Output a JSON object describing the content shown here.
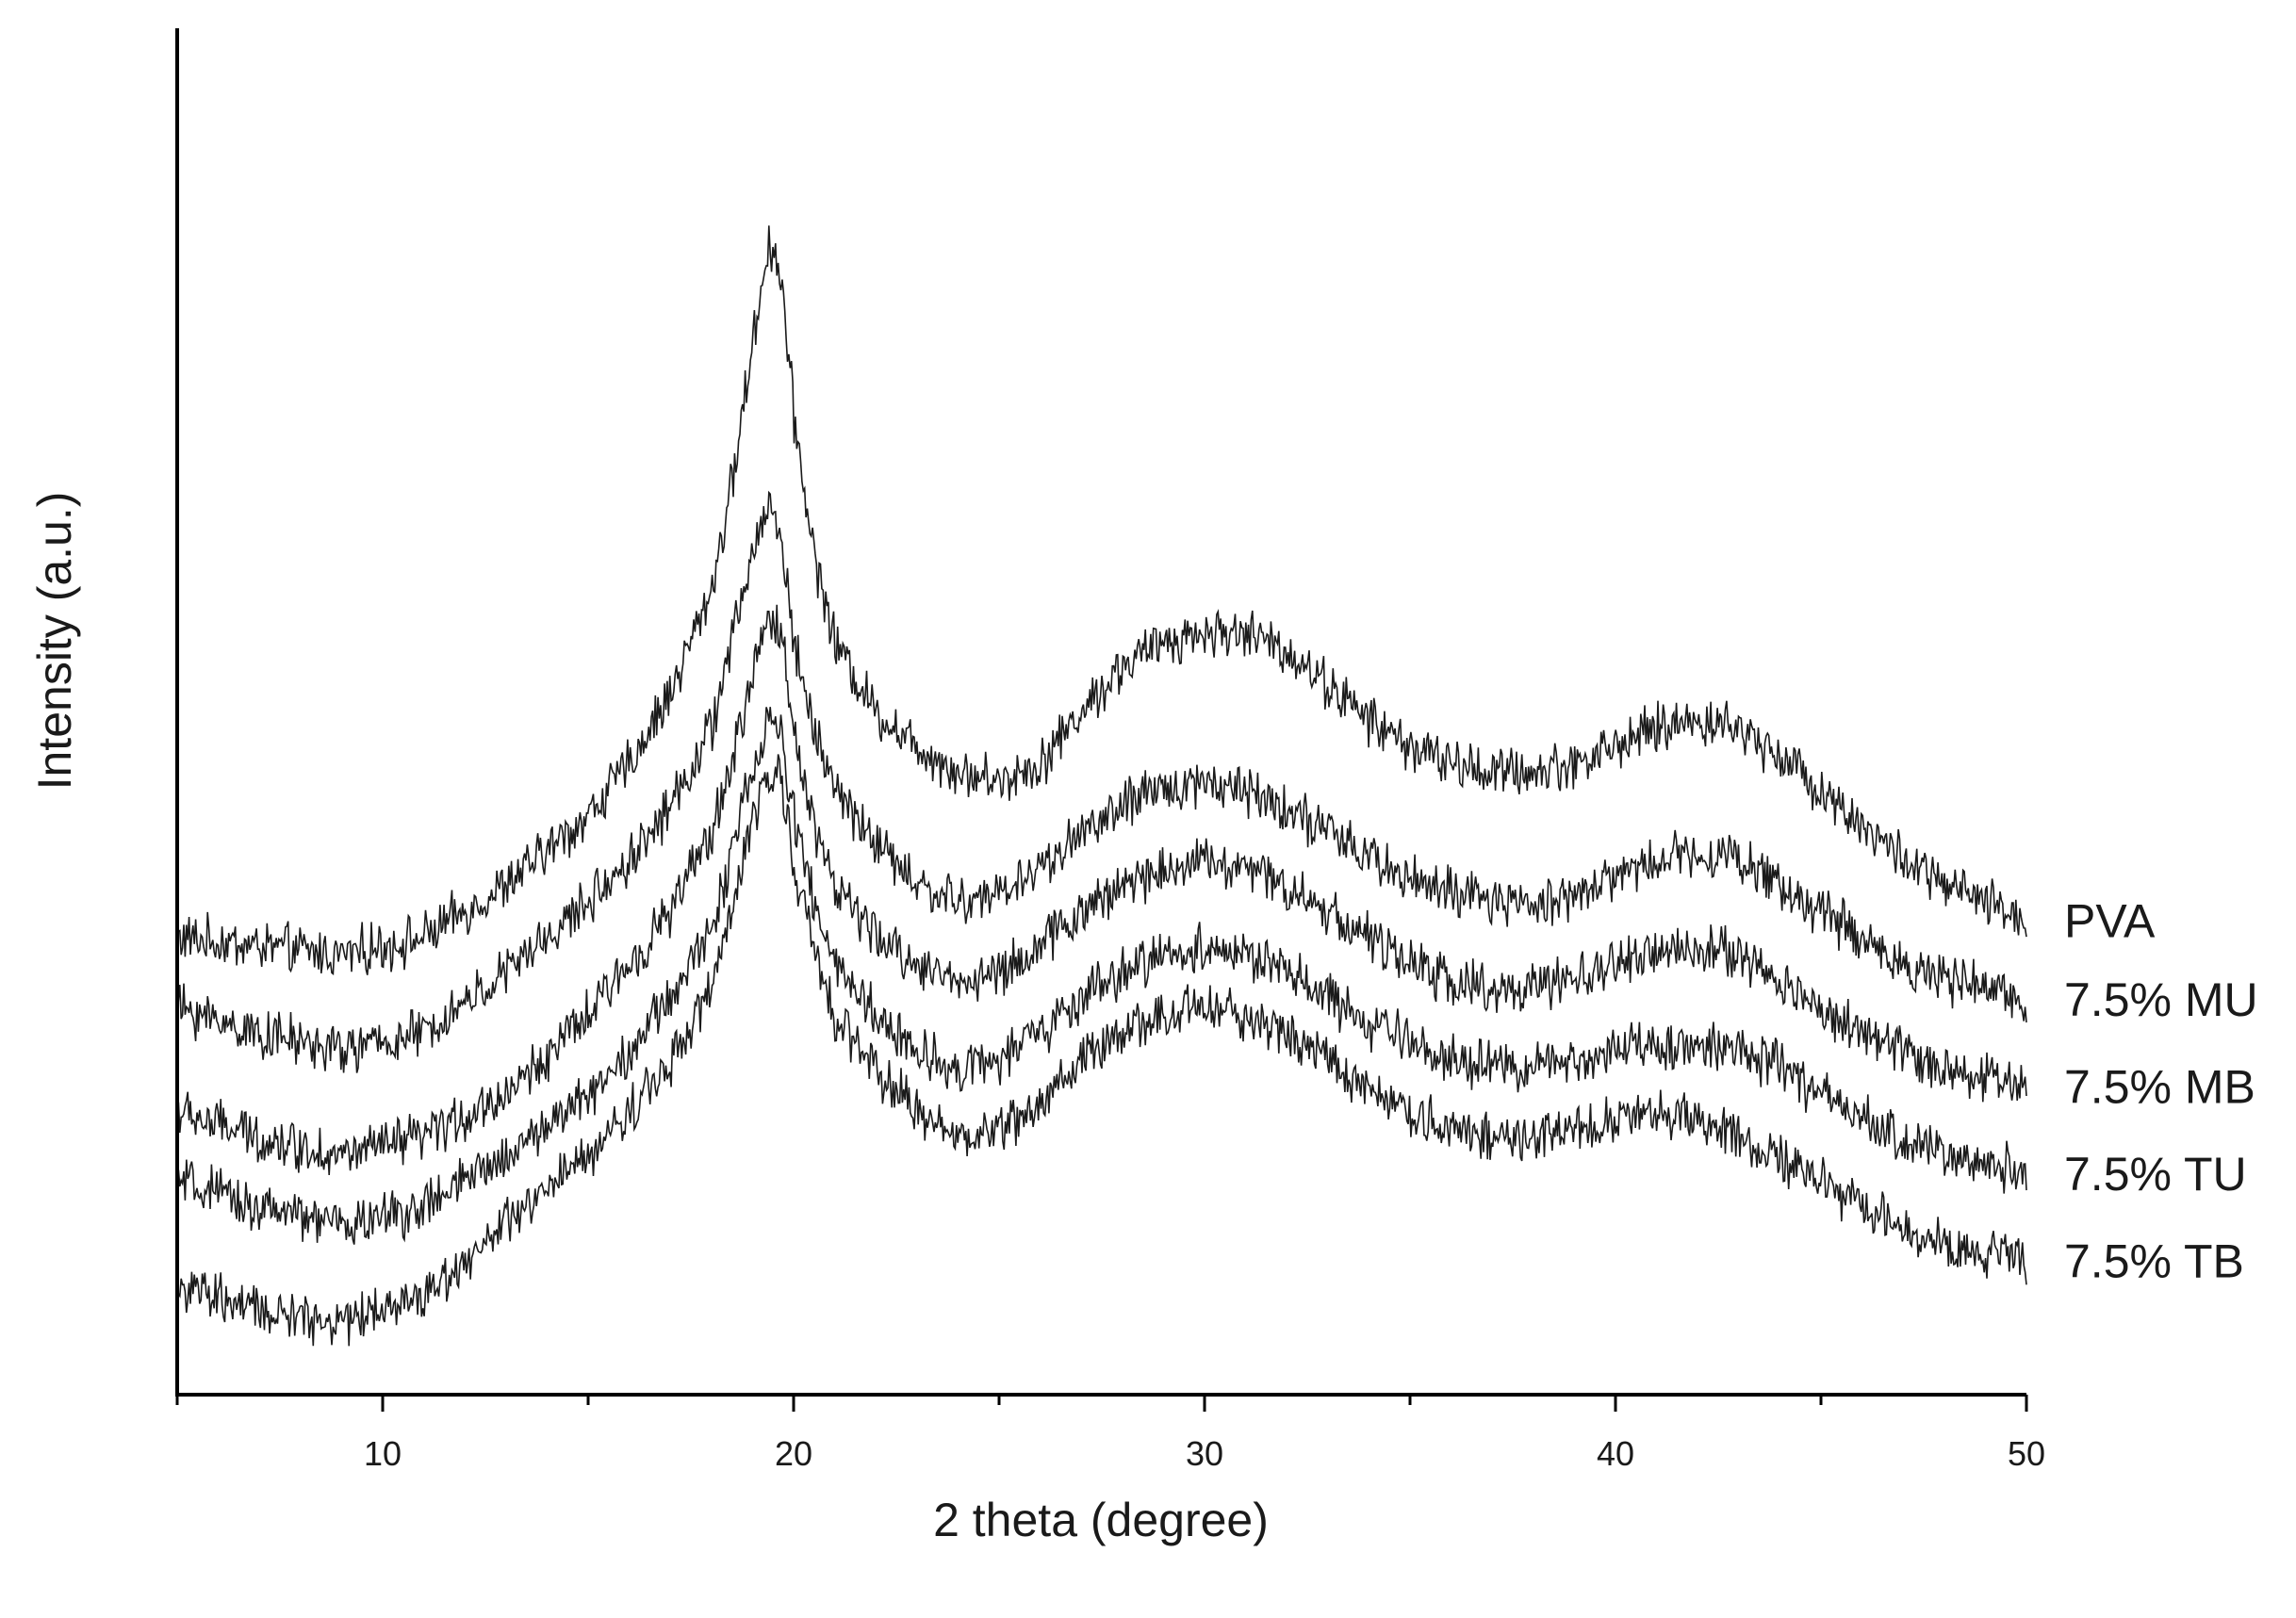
{
  "chart_data": {
    "type": "line",
    "title": "",
    "xlabel": "2 theta (degree)",
    "ylabel": "Intensity (a.u.)",
    "xlim": [
      5,
      50
    ],
    "x_ticks": [
      10,
      20,
      30,
      40,
      50
    ],
    "x_minor_ticks": [
      5,
      15,
      25,
      35,
      45
    ],
    "y_ticks_shown": false,
    "grid": false,
    "legend": "labels at right end of each curve",
    "line_color": "#1a1a1a",
    "series": [
      {
        "name": "PVA",
        "x": [
          5,
          7,
          9,
          11,
          13,
          15,
          16,
          17,
          18,
          18.5,
          19,
          19.4,
          19.7,
          20,
          20.5,
          21,
          22,
          23,
          24,
          25,
          26,
          27,
          28,
          29,
          30,
          31,
          32,
          33,
          34,
          35,
          36,
          37,
          38,
          39,
          40,
          41,
          42,
          43,
          44,
          45,
          46,
          47,
          48,
          49,
          50
        ],
        "y": [
          2.0,
          1.95,
          1.9,
          2.0,
          2.3,
          2.7,
          3.0,
          3.4,
          4.0,
          4.6,
          5.4,
          6.0,
          5.8,
          5.0,
          4.2,
          3.7,
          3.3,
          3.1,
          2.95,
          2.9,
          3.0,
          3.3,
          3.55,
          3.7,
          3.75,
          3.75,
          3.65,
          3.45,
          3.25,
          3.1,
          3.0,
          2.95,
          2.95,
          3.0,
          3.1,
          3.2,
          3.25,
          3.2,
          3.05,
          2.85,
          2.65,
          2.45,
          2.3,
          2.2,
          2.1
        ]
      },
      {
        "name": "7.5% MU",
        "x": [
          5,
          7,
          9,
          11,
          13,
          15,
          16,
          17,
          18,
          18.5,
          19,
          19.4,
          19.7,
          20,
          20.5,
          21,
          22,
          23,
          24,
          25,
          26,
          27,
          28,
          29,
          30,
          31,
          32,
          33,
          34,
          35,
          36,
          37,
          38,
          39,
          40,
          41,
          42,
          43,
          44,
          45,
          46,
          47,
          48,
          49,
          50
        ],
        "y": [
          1.6,
          1.45,
          1.35,
          1.45,
          1.8,
          2.2,
          2.45,
          2.75,
          3.2,
          3.7,
          4.2,
          4.5,
          4.3,
          3.7,
          3.2,
          2.85,
          2.55,
          2.3,
          2.2,
          2.25,
          2.4,
          2.6,
          2.75,
          2.85,
          2.9,
          2.85,
          2.75,
          2.6,
          2.45,
          2.35,
          2.25,
          2.2,
          2.2,
          2.25,
          2.35,
          2.45,
          2.5,
          2.45,
          2.3,
          2.15,
          2.0,
          1.85,
          1.75,
          1.7,
          1.65
        ]
      },
      {
        "name": "7.5% MB",
        "x": [
          5,
          7,
          9,
          11,
          13,
          15,
          16,
          17,
          18,
          18.5,
          19,
          19.4,
          19.7,
          20,
          20.5,
          21,
          22,
          23,
          24,
          25,
          26,
          27,
          28,
          29,
          30,
          31,
          32,
          33,
          34,
          35,
          36,
          37,
          38,
          39,
          40,
          41,
          42,
          43,
          44,
          45,
          46,
          47,
          48,
          49,
          50
        ],
        "y": [
          1.0,
          0.85,
          0.75,
          0.85,
          1.1,
          1.55,
          1.85,
          2.15,
          2.6,
          3.0,
          3.5,
          3.85,
          3.75,
          3.2,
          2.65,
          2.3,
          2.0,
          1.85,
          1.75,
          1.8,
          1.95,
          2.15,
          2.3,
          2.4,
          2.45,
          2.4,
          2.3,
          2.15,
          2.0,
          1.85,
          1.75,
          1.7,
          1.7,
          1.75,
          1.85,
          1.9,
          1.95,
          1.9,
          1.75,
          1.6,
          1.45,
          1.35,
          1.25,
          1.2,
          1.15
        ]
      },
      {
        "name": "7.5% TU",
        "x": [
          5,
          7,
          9,
          11,
          13,
          15,
          16,
          17,
          18,
          18.5,
          19,
          19.4,
          19.7,
          20,
          20.5,
          21,
          22,
          23,
          24,
          25,
          26,
          27,
          28,
          29,
          30,
          31,
          32,
          33,
          34,
          35,
          36,
          37,
          38,
          39,
          40,
          41,
          42,
          43,
          44,
          45,
          46,
          47,
          48,
          49,
          50
        ],
        "y": [
          0.6,
          0.45,
          0.35,
          0.45,
          0.75,
          1.1,
          1.35,
          1.65,
          2.05,
          2.5,
          2.95,
          3.25,
          3.15,
          2.7,
          2.2,
          1.85,
          1.55,
          1.35,
          1.25,
          1.3,
          1.45,
          1.65,
          1.8,
          1.9,
          1.95,
          1.9,
          1.8,
          1.65,
          1.5,
          1.4,
          1.3,
          1.25,
          1.25,
          1.3,
          1.35,
          1.4,
          1.4,
          1.35,
          1.25,
          1.1,
          0.95,
          0.85,
          0.75,
          0.7,
          0.65
        ]
      },
      {
        "name": "7.5% TB",
        "x": [
          5,
          7,
          9,
          11,
          13,
          15,
          16,
          17,
          18,
          18.5,
          19,
          19.4,
          19.7,
          20,
          20.5,
          21,
          22,
          23,
          24,
          25,
          26,
          27,
          28,
          29,
          30,
          31,
          32,
          33,
          34,
          35,
          36,
          37,
          38,
          39,
          40,
          41,
          42,
          43,
          44,
          45,
          46,
          47,
          48,
          49,
          50
        ],
        "y": [
          0.0,
          -0.15,
          -0.2,
          -0.05,
          0.35,
          0.75,
          1.0,
          1.3,
          1.7,
          2.15,
          2.65,
          3.0,
          2.9,
          2.45,
          1.9,
          1.55,
          1.25,
          1.0,
          0.85,
          0.9,
          1.05,
          1.3,
          1.45,
          1.55,
          1.6,
          1.55,
          1.45,
          1.3,
          1.15,
          1.0,
          0.9,
          0.85,
          0.85,
          0.9,
          0.95,
          1.0,
          0.95,
          0.85,
          0.75,
          0.6,
          0.45,
          0.35,
          0.25,
          0.2,
          0.15
        ]
      }
    ]
  }
}
